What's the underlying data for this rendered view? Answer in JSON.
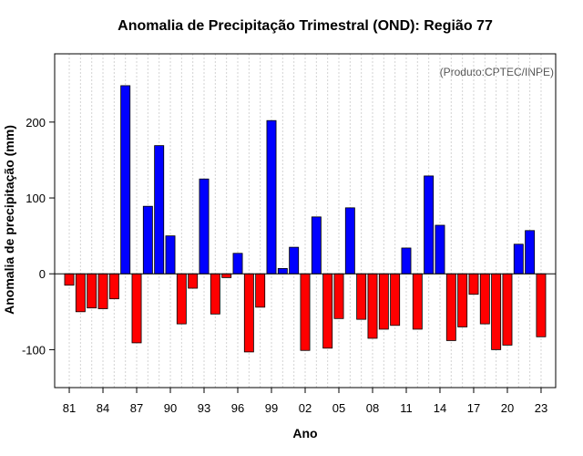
{
  "chart_data": {
    "type": "bar",
    "title": "Anomalia de Precipitação Trimestral (OND): Região 77",
    "xlabel": "Ano",
    "ylabel": "Anomalia de precipitação (mm)",
    "credit": "(Produto:CPTEC/INPE)",
    "ylim": [
      -150,
      290
    ],
    "yticks": [
      -100,
      0,
      100,
      200
    ],
    "grid": "vertical dotted",
    "colors": {
      "positive": "#0000ff",
      "negative": "#ff0000",
      "axis": "#000000",
      "grid": "#d3d3d3"
    },
    "categories": [
      "81",
      "82",
      "83",
      "84",
      "85",
      "86",
      "87",
      "88",
      "89",
      "90",
      "91",
      "92",
      "93",
      "94",
      "95",
      "96",
      "97",
      "98",
      "99",
      "00",
      "01",
      "02",
      "03",
      "04",
      "05",
      "06",
      "07",
      "08",
      "09",
      "10",
      "11",
      "12",
      "13",
      "14",
      "15",
      "16",
      "17",
      "18",
      "19",
      "20",
      "21",
      "22",
      "23"
    ],
    "xtick_labels": [
      "81",
      "84",
      "87",
      "90",
      "93",
      "96",
      "99",
      "02",
      "05",
      "08",
      "11",
      "14",
      "17",
      "20",
      "23"
    ],
    "values": [
      -15,
      -50,
      -45,
      -46,
      -33,
      248,
      -91,
      89,
      169,
      50,
      -66,
      -19,
      125,
      -53,
      -5,
      27,
      -103,
      -44,
      202,
      7,
      35,
      -101,
      75,
      -98,
      -59,
      87,
      -60,
      -85,
      -73,
      -68,
      34,
      -73,
      129,
      64,
      -88,
      -70,
      -27,
      -66,
      -100,
      -94,
      39,
      57,
      -83
    ]
  }
}
